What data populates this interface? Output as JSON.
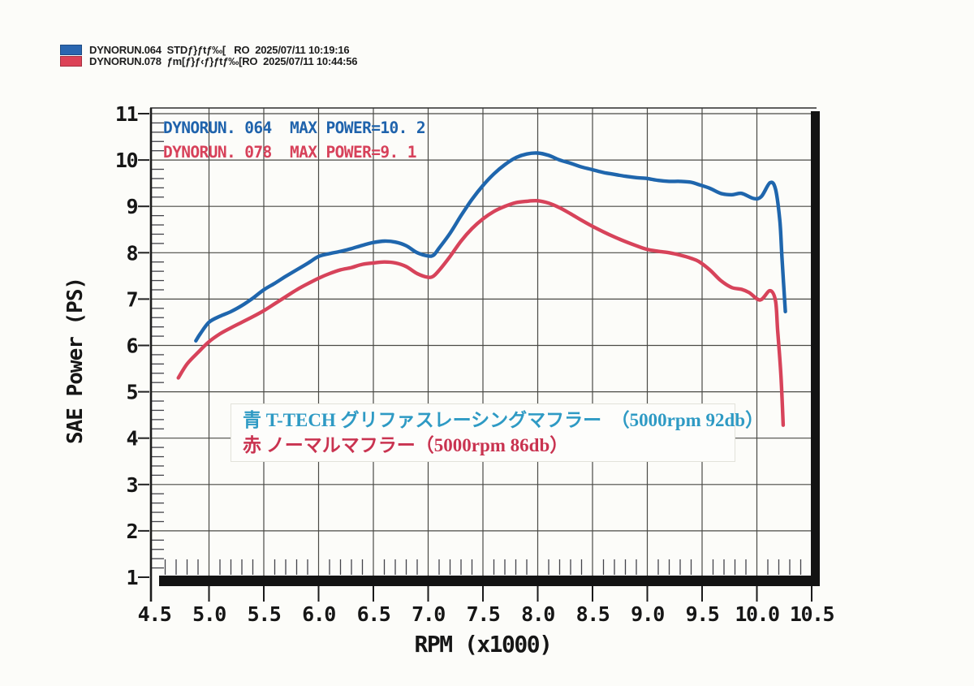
{
  "page": {
    "background": "#fcfcf9"
  },
  "header": {
    "runs": [
      {
        "swatch_color": "#2a66b0",
        "text": "DYNORUN.064  STDƒ}ƒtƒ‰[   RO  2025/07/11 10:19:16"
      },
      {
        "swatch_color": "#dc4257",
        "text": "DYNORUN.078  ƒm[ƒ}ƒ‹ƒ}ƒtƒ‰[RO  2025/07/11 10:44:56"
      }
    ]
  },
  "chart_data": {
    "type": "line",
    "xlabel": "RPM (x1000)",
    "ylabel": "SAE Power (PS)",
    "xlim": [
      4.5,
      10.5
    ],
    "ylim": [
      1,
      11.1
    ],
    "grid": "both-major, dark thin lines",
    "x_ticks": [
      "4.5",
      "5.0",
      "5.5",
      "6.0",
      "6.5",
      "7.0",
      "7.5",
      "8.0",
      "8.5",
      "9.0",
      "9.5",
      "10.0",
      "10.5"
    ],
    "y_ticks": [
      "11",
      "10",
      "9",
      "8",
      "7",
      "6",
      "5",
      "4",
      "3",
      "2",
      "1"
    ],
    "x_minor_step": 0.1,
    "y_minor_step": 0.2,
    "inner_legend": [
      {
        "label": "DYNORUN. 064  MAX POWER=10. 2",
        "color": "#1f63ac"
      },
      {
        "label": "DYNORUN. 078  MAX POWER=9. 1",
        "color": "#d7415a"
      }
    ],
    "annotation": {
      "lines": [
        {
          "text": "青 T-TECH グリファスレーシングマフラー　（5000rpm 92db）",
          "color": "#2e9ac4"
        },
        {
          "text": "赤 ノーマルマフラー（5000rpm 86db）",
          "color": "#c93350"
        }
      ]
    },
    "series": [
      {
        "name": "DYNORUN.064",
        "color": "#1f66ad",
        "max_power": 10.2,
        "points": [
          [
            4.88,
            6.1
          ],
          [
            4.92,
            6.25
          ],
          [
            5.0,
            6.5
          ],
          [
            5.1,
            6.63
          ],
          [
            5.2,
            6.73
          ],
          [
            5.3,
            6.86
          ],
          [
            5.4,
            7.02
          ],
          [
            5.5,
            7.2
          ],
          [
            5.6,
            7.34
          ],
          [
            5.7,
            7.49
          ],
          [
            5.8,
            7.63
          ],
          [
            5.9,
            7.77
          ],
          [
            6.0,
            7.92
          ],
          [
            6.1,
            7.98
          ],
          [
            6.2,
            8.03
          ],
          [
            6.3,
            8.09
          ],
          [
            6.4,
            8.16
          ],
          [
            6.5,
            8.22
          ],
          [
            6.6,
            8.25
          ],
          [
            6.7,
            8.23
          ],
          [
            6.8,
            8.15
          ],
          [
            6.9,
            8.0
          ],
          [
            7.0,
            7.93
          ],
          [
            7.05,
            7.95
          ],
          [
            7.1,
            8.1
          ],
          [
            7.2,
            8.42
          ],
          [
            7.3,
            8.8
          ],
          [
            7.4,
            9.15
          ],
          [
            7.5,
            9.45
          ],
          [
            7.6,
            9.7
          ],
          [
            7.7,
            9.9
          ],
          [
            7.8,
            10.05
          ],
          [
            7.9,
            10.13
          ],
          [
            8.0,
            10.15
          ],
          [
            8.1,
            10.1
          ],
          [
            8.2,
            10.0
          ],
          [
            8.3,
            9.93
          ],
          [
            8.4,
            9.85
          ],
          [
            8.5,
            9.79
          ],
          [
            8.6,
            9.73
          ],
          [
            8.7,
            9.69
          ],
          [
            8.8,
            9.65
          ],
          [
            8.9,
            9.62
          ],
          [
            9.0,
            9.6
          ],
          [
            9.1,
            9.56
          ],
          [
            9.2,
            9.54
          ],
          [
            9.3,
            9.54
          ],
          [
            9.4,
            9.52
          ],
          [
            9.47,
            9.47
          ],
          [
            9.57,
            9.39
          ],
          [
            9.67,
            9.28
          ],
          [
            9.77,
            9.25
          ],
          [
            9.86,
            9.28
          ],
          [
            9.97,
            9.17
          ],
          [
            10.04,
            9.21
          ],
          [
            10.12,
            9.51
          ],
          [
            10.17,
            9.37
          ],
          [
            10.21,
            8.67
          ],
          [
            10.23,
            7.84
          ],
          [
            10.26,
            6.73
          ]
        ]
      },
      {
        "name": "DYNORUN.078",
        "color": "#d7435a",
        "max_power": 9.1,
        "points": [
          [
            4.72,
            5.3
          ],
          [
            4.8,
            5.6
          ],
          [
            4.9,
            5.85
          ],
          [
            5.0,
            6.08
          ],
          [
            5.1,
            6.25
          ],
          [
            5.2,
            6.38
          ],
          [
            5.3,
            6.5
          ],
          [
            5.4,
            6.62
          ],
          [
            5.5,
            6.75
          ],
          [
            5.6,
            6.9
          ],
          [
            5.7,
            7.05
          ],
          [
            5.8,
            7.2
          ],
          [
            5.9,
            7.33
          ],
          [
            6.0,
            7.45
          ],
          [
            6.1,
            7.55
          ],
          [
            6.2,
            7.63
          ],
          [
            6.3,
            7.68
          ],
          [
            6.4,
            7.75
          ],
          [
            6.5,
            7.78
          ],
          [
            6.6,
            7.8
          ],
          [
            6.7,
            7.78
          ],
          [
            6.8,
            7.7
          ],
          [
            6.9,
            7.55
          ],
          [
            7.0,
            7.47
          ],
          [
            7.05,
            7.5
          ],
          [
            7.1,
            7.62
          ],
          [
            7.2,
            7.92
          ],
          [
            7.3,
            8.25
          ],
          [
            7.4,
            8.52
          ],
          [
            7.5,
            8.73
          ],
          [
            7.6,
            8.89
          ],
          [
            7.7,
            9.0
          ],
          [
            7.8,
            9.08
          ],
          [
            7.9,
            9.11
          ],
          [
            8.0,
            9.12
          ],
          [
            8.1,
            9.07
          ],
          [
            8.2,
            8.97
          ],
          [
            8.3,
            8.84
          ],
          [
            8.4,
            8.7
          ],
          [
            8.5,
            8.57
          ],
          [
            8.6,
            8.45
          ],
          [
            8.7,
            8.34
          ],
          [
            8.8,
            8.24
          ],
          [
            8.9,
            8.15
          ],
          [
            9.0,
            8.07
          ],
          [
            9.1,
            8.03
          ],
          [
            9.2,
            8.0
          ],
          [
            9.3,
            7.95
          ],
          [
            9.4,
            7.88
          ],
          [
            9.47,
            7.81
          ],
          [
            9.57,
            7.63
          ],
          [
            9.67,
            7.4
          ],
          [
            9.77,
            7.25
          ],
          [
            9.86,
            7.21
          ],
          [
            9.93,
            7.14
          ],
          [
            10.03,
            6.98
          ],
          [
            10.12,
            7.18
          ],
          [
            10.17,
            6.96
          ],
          [
            10.19,
            6.32
          ],
          [
            10.22,
            5.33
          ],
          [
            10.24,
            4.28
          ]
        ]
      }
    ]
  }
}
